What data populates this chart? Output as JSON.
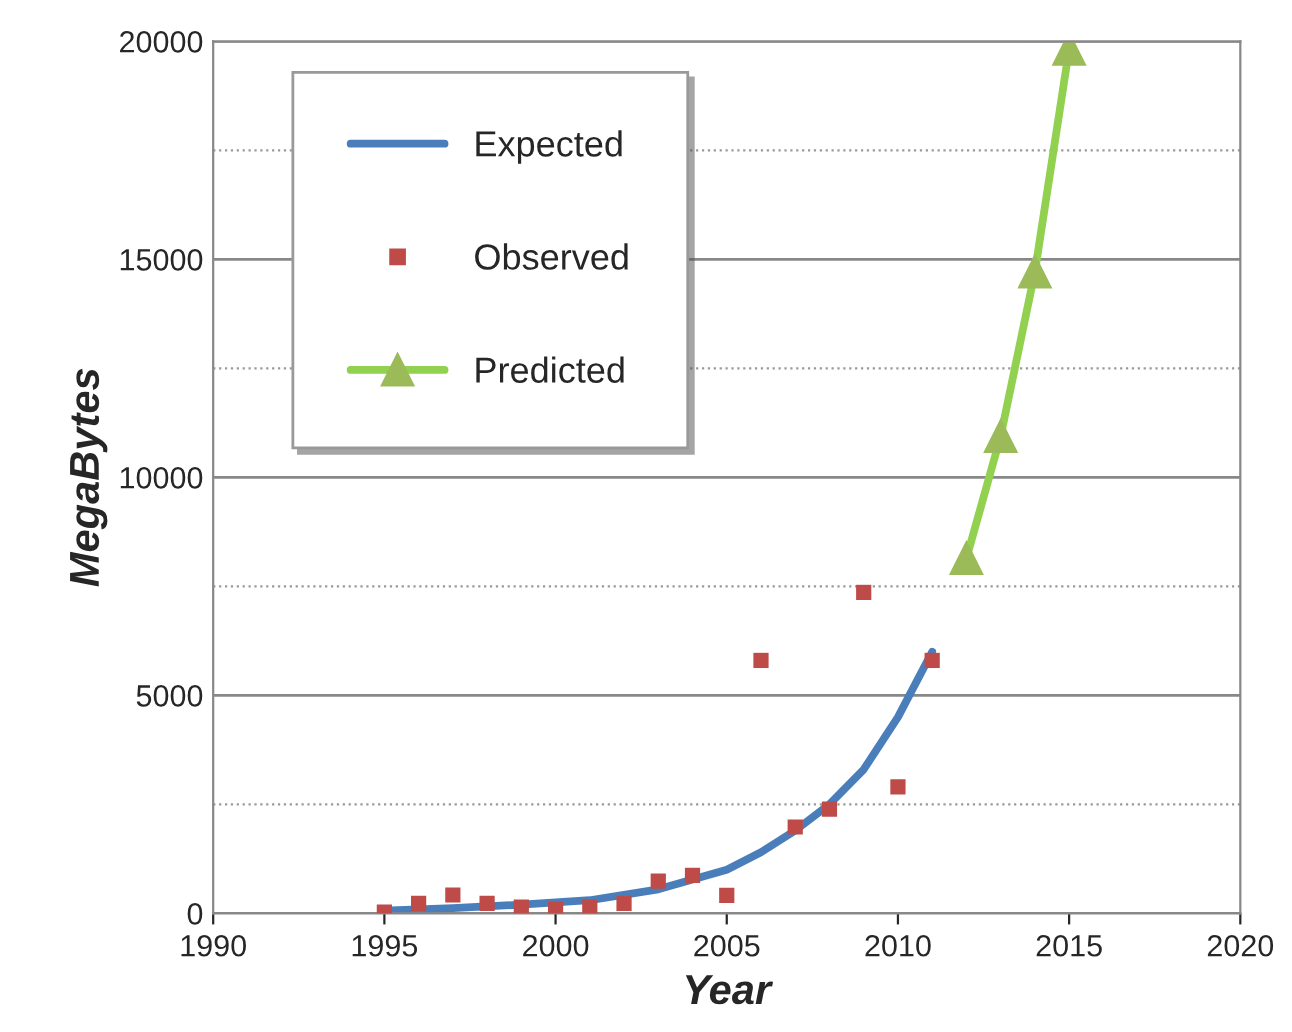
{
  "chart_data": {
    "type": "line",
    "xlabel": "Year",
    "ylabel": "MegaBytes",
    "xlim": [
      1990,
      2020
    ],
    "xticks": [
      1990,
      1995,
      2000,
      2005,
      2010,
      2015,
      2020
    ],
    "ylim": [
      0,
      20000
    ],
    "yticks": [
      0,
      {
        "value": 2500,
        "label": null
      },
      5000,
      {
        "value": 7500,
        "label": null
      },
      10000,
      {
        "value": 12500,
        "label": null
      },
      15000,
      {
        "value": 17500,
        "label": null
      },
      20000
    ],
    "grid": "y",
    "legend": "top left",
    "series": [
      {
        "name": "Expected",
        "color": "#4a7ebb",
        "marker": "none",
        "x": [
          1995,
          1997,
          1999,
          2001,
          2003,
          2005,
          2006,
          2007,
          2008,
          2009,
          2010,
          2011
        ],
        "values": [
          60,
          120,
          200,
          300,
          550,
          1000,
          1400,
          1900,
          2500,
          3300,
          4500,
          6000
        ]
      },
      {
        "name": "Observed",
        "type": "scatter",
        "color": "#be4b48",
        "marker": "square",
        "x": [
          1995,
          1996,
          1997,
          1998,
          1999,
          2000,
          2001,
          2002,
          2003,
          2004,
          2005,
          2006,
          2007,
          2008,
          2009,
          2010,
          2011
        ],
        "values": [
          30,
          230,
          420,
          230,
          140,
          90,
          140,
          230,
          740,
          870,
          410,
          5800,
          1980,
          2390,
          7360,
          2900,
          5800
        ]
      },
      {
        "name": "Predicted",
        "color": "#92d050",
        "marker": "triangle",
        "x": [
          2012,
          2013,
          2014,
          2015
        ],
        "values": [
          8140,
          10940,
          14710,
          19820
        ]
      }
    ]
  }
}
